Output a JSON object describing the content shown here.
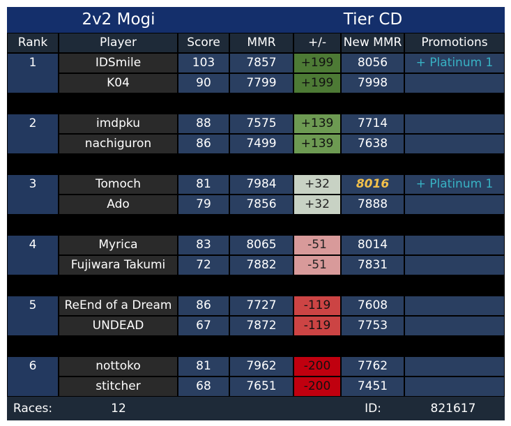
{
  "header": {
    "left_title": "2v2 Mogi",
    "right_title": "Tier CD"
  },
  "columns": [
    "Rank",
    "Player",
    "Score",
    "MMR",
    "+/-",
    "New MMR",
    "Promotions"
  ],
  "teams": [
    {
      "rank": "1",
      "players": [
        {
          "name": "IDSmile",
          "score": "103",
          "mmr": "7857",
          "delta": "+199",
          "new_mmr": "8056",
          "promotion": "+ Platinum 1",
          "delta_color": "#4d7a35",
          "new_mmr_highlight": false
        },
        {
          "name": "K04",
          "score": "90",
          "mmr": "7799",
          "delta": "+199",
          "new_mmr": "7998",
          "promotion": "",
          "delta_color": "#4d7a35",
          "new_mmr_highlight": false
        }
      ]
    },
    {
      "rank": "2",
      "players": [
        {
          "name": "imdpku",
          "score": "88",
          "mmr": "7575",
          "delta": "+139",
          "new_mmr": "7714",
          "promotion": "",
          "delta_color": "#6d9a52",
          "new_mmr_highlight": false
        },
        {
          "name": "nachiguron",
          "score": "86",
          "mmr": "7499",
          "delta": "+139",
          "new_mmr": "7638",
          "promotion": "",
          "delta_color": "#6d9a52",
          "new_mmr_highlight": false
        }
      ]
    },
    {
      "rank": "3",
      "players": [
        {
          "name": "Tomoch",
          "score": "81",
          "mmr": "7984",
          "delta": "+32",
          "new_mmr": "8016",
          "promotion": "+ Platinum 1",
          "delta_color": "#c8d2c4",
          "new_mmr_highlight": true
        },
        {
          "name": "Ado",
          "score": "79",
          "mmr": "7856",
          "delta": "+32",
          "new_mmr": "7888",
          "promotion": "",
          "delta_color": "#c8d2c4",
          "new_mmr_highlight": false
        }
      ]
    },
    {
      "rank": "4",
      "players": [
        {
          "name": "Myrica",
          "score": "83",
          "mmr": "8065",
          "delta": "-51",
          "new_mmr": "8014",
          "promotion": "",
          "delta_color": "#d89a9a",
          "new_mmr_highlight": false
        },
        {
          "name": "Fujiwara Takumi",
          "score": "72",
          "mmr": "7882",
          "delta": "-51",
          "new_mmr": "7831",
          "promotion": "",
          "delta_color": "#d89a9a",
          "new_mmr_highlight": false
        }
      ]
    },
    {
      "rank": "5",
      "players": [
        {
          "name": "ReEnd of a Dream",
          "score": "86",
          "mmr": "7727",
          "delta": "-119",
          "new_mmr": "7608",
          "promotion": "",
          "delta_color": "#cc4444",
          "new_mmr_highlight": false
        },
        {
          "name": "UNDEAD",
          "score": "67",
          "mmr": "7872",
          "delta": "-119",
          "new_mmr": "7753",
          "promotion": "",
          "delta_color": "#cc4444",
          "new_mmr_highlight": false
        }
      ]
    },
    {
      "rank": "6",
      "players": [
        {
          "name": "nottoko",
          "score": "81",
          "mmr": "7962",
          "delta": "-200",
          "new_mmr": "7762",
          "promotion": "",
          "delta_color": "#c0000f",
          "new_mmr_highlight": false
        },
        {
          "name": "stitcher",
          "score": "68",
          "mmr": "7651",
          "delta": "-200",
          "new_mmr": "7451",
          "promotion": "",
          "delta_color": "#c0000f",
          "new_mmr_highlight": false
        }
      ]
    }
  ],
  "footer": {
    "races_label": "Races:",
    "races_value": "12",
    "id_label": "ID:",
    "id_value": "821617"
  }
}
